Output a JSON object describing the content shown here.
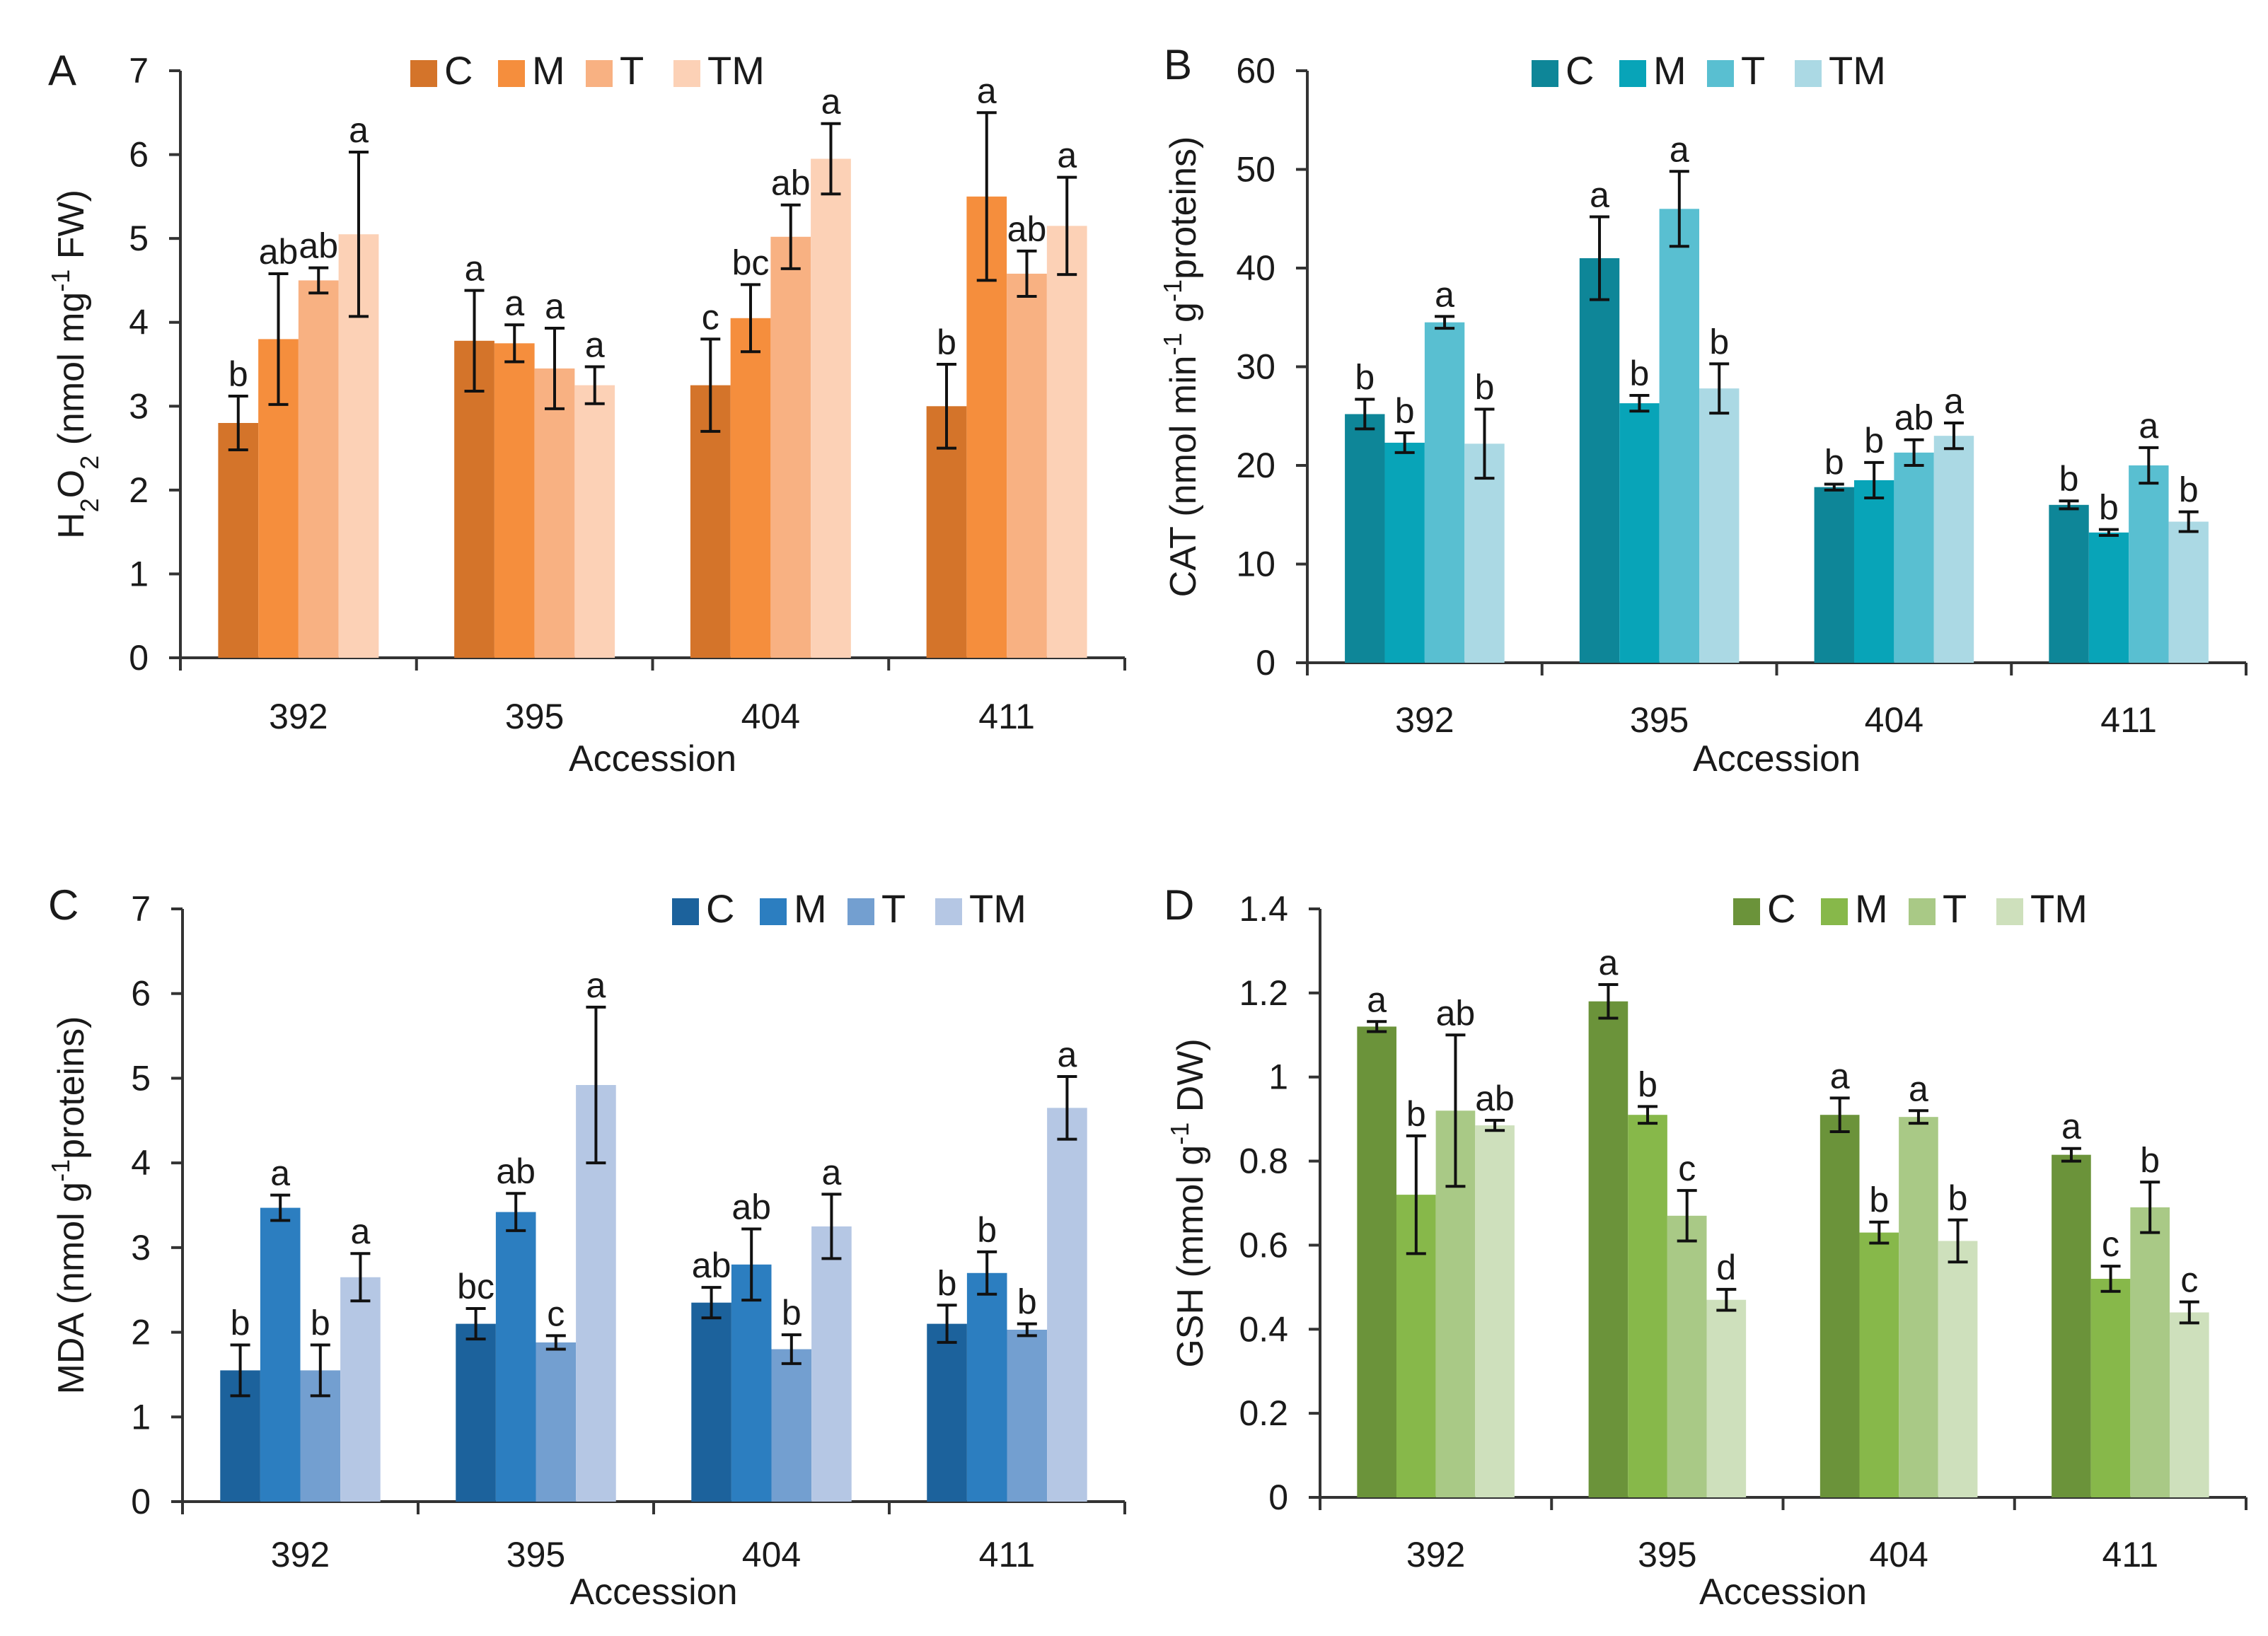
{
  "figure": {
    "panels": [
      {
        "id": "A",
        "letter": "A"
      },
      {
        "id": "B",
        "letter": "B"
      },
      {
        "id": "C",
        "letter": "C"
      },
      {
        "id": "D",
        "letter": "D"
      }
    ]
  },
  "chart_data": [
    {
      "panel": "A",
      "type": "bar",
      "title": "",
      "xlabel": "Accession",
      "ylabel": "H2O2 (nmol mg-1 FW)",
      "ylabel_parts": [
        {
          "t": "H"
        },
        {
          "t": "2",
          "sub": true
        },
        {
          "t": "O"
        },
        {
          "t": "2",
          "sub": true
        },
        {
          "t": " (nmol mg"
        },
        {
          "t": "-1",
          "sup": true
        },
        {
          "t": " FW)"
        }
      ],
      "ylim": [
        0,
        7
      ],
      "yticks": [
        0,
        1,
        2,
        3,
        4,
        5,
        6,
        7
      ],
      "categories": [
        "392",
        "395",
        "404",
        "411"
      ],
      "legend_position": "top",
      "series": [
        {
          "name": "C",
          "color": "#D4742A",
          "values": [
            2.8,
            3.78,
            3.25,
            3.0
          ],
          "errors": [
            0.32,
            0.6,
            0.55,
            0.5
          ],
          "labels": [
            "b",
            "a",
            "c",
            "b"
          ]
        },
        {
          "name": "M",
          "color": "#F58E3D",
          "values": [
            3.8,
            3.75,
            4.05,
            5.5
          ],
          "errors": [
            0.78,
            0.22,
            0.4,
            1.0
          ],
          "labels": [
            "ab",
            "a",
            "bc",
            "a"
          ]
        },
        {
          "name": "T",
          "color": "#F8B182",
          "values": [
            4.5,
            3.45,
            5.02,
            4.58
          ],
          "errors": [
            0.15,
            0.48,
            0.38,
            0.27
          ],
          "labels": [
            "ab",
            "a",
            "ab",
            "ab"
          ]
        },
        {
          "name": "TM",
          "color": "#FCD1B6",
          "values": [
            5.05,
            3.25,
            5.95,
            5.15
          ],
          "errors": [
            0.98,
            0.22,
            0.42,
            0.58
          ],
          "labels": [
            "a",
            "a",
            "a",
            "a"
          ]
        }
      ]
    },
    {
      "panel": "B",
      "type": "bar",
      "title": "",
      "xlabel": "Accession",
      "ylabel": "CAT (nmol min-1 g-1proteins)",
      "ylabel_parts": [
        {
          "t": "CAT (nmol min"
        },
        {
          "t": "-1",
          "sup": true
        },
        {
          "t": " g"
        },
        {
          "t": "-1",
          "sup": true
        },
        {
          "t": "proteins)"
        }
      ],
      "ylim": [
        0,
        60
      ],
      "yticks": [
        0,
        10,
        20,
        30,
        40,
        50,
        60
      ],
      "categories": [
        "392",
        "395",
        "404",
        "411"
      ],
      "legend_position": "top",
      "series": [
        {
          "name": "C",
          "color": "#0E8698",
          "values": [
            25.2,
            41.0,
            17.8,
            16.0
          ],
          "errors": [
            1.5,
            4.2,
            0.3,
            0.4
          ],
          "labels": [
            "b",
            "a",
            "b",
            "b"
          ]
        },
        {
          "name": "M",
          "color": "#08A4B8",
          "values": [
            22.3,
            26.3,
            18.5,
            13.2
          ],
          "errors": [
            1.0,
            0.8,
            1.8,
            0.3
          ],
          "labels": [
            "b",
            "b",
            "b",
            "b"
          ]
        },
        {
          "name": "T",
          "color": "#59BFD1",
          "values": [
            34.5,
            46.0,
            21.3,
            20.0
          ],
          "errors": [
            0.6,
            3.8,
            1.3,
            1.8
          ],
          "labels": [
            "a",
            "a",
            "ab",
            "a"
          ]
        },
        {
          "name": "TM",
          "color": "#ABD9E4",
          "values": [
            22.2,
            27.8,
            23.0,
            14.3
          ],
          "errors": [
            3.5,
            2.5,
            1.3,
            1.0
          ],
          "labels": [
            "b",
            "b",
            "a",
            "b"
          ]
        }
      ]
    },
    {
      "panel": "C",
      "type": "bar",
      "title": "",
      "xlabel": "Accession",
      "ylabel": "MDA (nmol g-1proteins)",
      "ylabel_parts": [
        {
          "t": "MDA (nmol g"
        },
        {
          "t": "-1",
          "sup": true
        },
        {
          "t": "proteins)"
        }
      ],
      "ylim": [
        0,
        7
      ],
      "yticks": [
        0,
        1,
        2,
        3,
        4,
        5,
        6,
        7
      ],
      "categories": [
        "392",
        "395",
        "404",
        "411"
      ],
      "legend_position": "top-right",
      "series": [
        {
          "name": "C",
          "color": "#1C629C",
          "values": [
            1.55,
            2.1,
            2.35,
            2.1
          ],
          "errors": [
            0.3,
            0.18,
            0.18,
            0.22
          ],
          "labels": [
            "b",
            "bc",
            "ab",
            "b"
          ]
        },
        {
          "name": "M",
          "color": "#2C7EC0",
          "values": [
            3.47,
            3.42,
            2.8,
            2.7
          ],
          "errors": [
            0.15,
            0.22,
            0.42,
            0.25
          ],
          "labels": [
            "a",
            "ab",
            "ab",
            "b"
          ]
        },
        {
          "name": "T",
          "color": "#739FD0",
          "values": [
            1.55,
            1.88,
            1.8,
            2.03
          ],
          "errors": [
            0.3,
            0.08,
            0.17,
            0.07
          ],
          "labels": [
            "b",
            "c",
            "b",
            "b"
          ]
        },
        {
          "name": "TM",
          "color": "#B5C7E4",
          "values": [
            2.65,
            4.92,
            3.25,
            4.65
          ],
          "errors": [
            0.28,
            0.92,
            0.38,
            0.37
          ],
          "labels": [
            "a",
            "a",
            "a",
            "a"
          ]
        }
      ]
    },
    {
      "panel": "D",
      "type": "bar",
      "title": "",
      "xlabel": "Accession",
      "ylabel": "GSH (mmol g-1 DW)",
      "ylabel_parts": [
        {
          "t": "GSH (mmol  g"
        },
        {
          "t": "-1",
          "sup": true
        },
        {
          "t": " DW)"
        }
      ],
      "ylim": [
        0,
        1.4
      ],
      "yticks": [
        0,
        0.2,
        0.4,
        0.6,
        0.8,
        1,
        1.2,
        1.4
      ],
      "ytick_labels": [
        "0",
        "0.2",
        "0.4",
        "0.6",
        "0.8",
        "1",
        "1.2",
        "1.4"
      ],
      "categories": [
        "392",
        "395",
        "404",
        "411"
      ],
      "legend_position": "top-right",
      "series": [
        {
          "name": "C",
          "color": "#6B933A",
          "values": [
            1.12,
            1.18,
            0.91,
            0.815
          ],
          "errors": [
            0.012,
            0.04,
            0.04,
            0.015
          ],
          "labels": [
            "a",
            "a",
            "a",
            "a"
          ]
        },
        {
          "name": "M",
          "color": "#87B84A",
          "values": [
            0.72,
            0.91,
            0.63,
            0.52
          ],
          "errors": [
            0.14,
            0.02,
            0.025,
            0.03
          ],
          "labels": [
            "b",
            "b",
            "b",
            "c"
          ]
        },
        {
          "name": "T",
          "color": "#A9C986",
          "values": [
            0.92,
            0.67,
            0.905,
            0.69
          ],
          "errors": [
            0.18,
            0.06,
            0.015,
            0.06
          ],
          "labels": [
            "ab",
            "c",
            "a",
            "b"
          ]
        },
        {
          "name": "TM",
          "color": "#CEE0BC",
          "values": [
            0.885,
            0.47,
            0.61,
            0.44
          ],
          "errors": [
            0.012,
            0.025,
            0.05,
            0.025
          ],
          "labels": [
            "ab",
            "d",
            "b",
            "c"
          ]
        }
      ]
    }
  ]
}
